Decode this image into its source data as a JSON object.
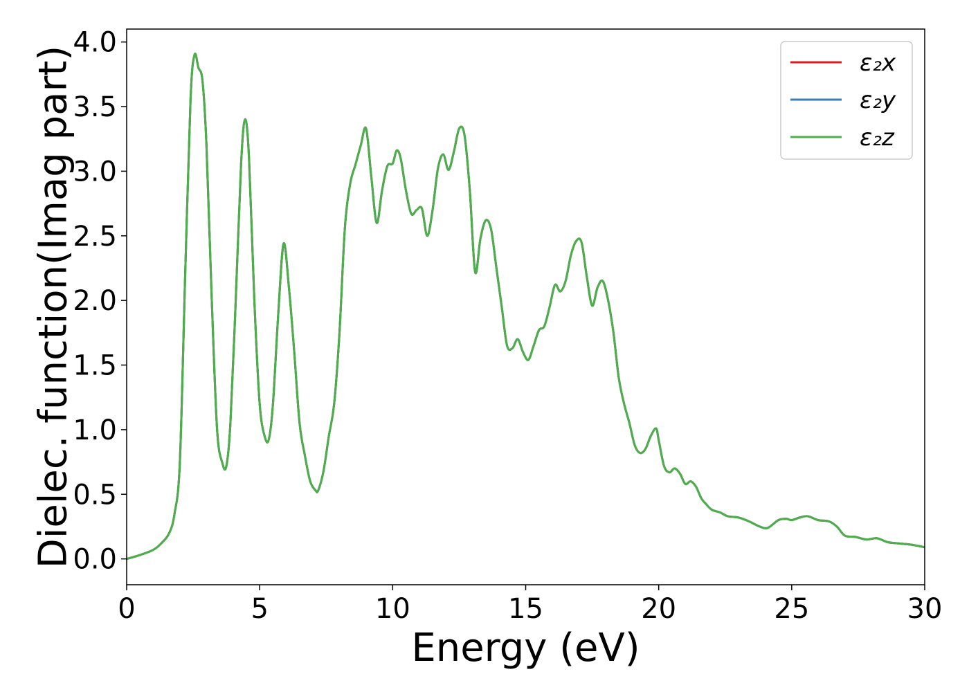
{
  "chart_data": {
    "type": "line",
    "title": "",
    "xlabel": "Energy (eV)",
    "ylabel": "Dielec. function(Imag part)",
    "xlim": [
      0,
      30
    ],
    "ylim": [
      -0.2,
      4.1
    ],
    "xticks": [
      0,
      5,
      10,
      15,
      20,
      25,
      30
    ],
    "xtick_labels": [
      "0",
      "5",
      "10",
      "15",
      "20",
      "25",
      "30"
    ],
    "yticks": [
      0.0,
      0.5,
      1.0,
      1.5,
      2.0,
      2.5,
      3.0,
      3.5,
      4.0
    ],
    "ytick_labels": [
      "0.0",
      "0.5",
      "1.0",
      "1.5",
      "2.0",
      "2.5",
      "3.0",
      "3.5",
      "4.0"
    ],
    "grid": false,
    "legend_position": "top-right",
    "x": [
      0,
      0.5,
      1.0,
      1.3,
      1.6,
      1.8,
      2.0,
      2.2,
      2.4,
      2.55,
      2.7,
      2.85,
      3.0,
      3.2,
      3.4,
      3.6,
      3.75,
      3.9,
      4.1,
      4.3,
      4.45,
      4.6,
      4.8,
      5.0,
      5.2,
      5.35,
      5.5,
      5.7,
      5.9,
      6.1,
      6.3,
      6.5,
      6.7,
      6.9,
      7.1,
      7.2,
      7.4,
      7.6,
      7.8,
      8.0,
      8.2,
      8.4,
      8.6,
      8.8,
      9.0,
      9.2,
      9.4,
      9.6,
      9.8,
      10.0,
      10.15,
      10.3,
      10.5,
      10.7,
      10.9,
      11.1,
      11.3,
      11.5,
      11.7,
      11.9,
      12.1,
      12.3,
      12.5,
      12.7,
      12.9,
      13.1,
      13.3,
      13.5,
      13.7,
      13.9,
      14.1,
      14.3,
      14.5,
      14.7,
      14.9,
      15.1,
      15.3,
      15.5,
      15.7,
      15.9,
      16.1,
      16.3,
      16.5,
      16.7,
      16.9,
      17.1,
      17.3,
      17.5,
      17.7,
      17.9,
      18.1,
      18.3,
      18.5,
      18.7,
      18.9,
      19.1,
      19.3,
      19.5,
      19.7,
      19.9,
      20.0,
      20.2,
      20.4,
      20.6,
      20.8,
      21.0,
      21.2,
      21.4,
      21.6,
      21.8,
      22.0,
      22.3,
      22.6,
      23.0,
      23.4,
      23.8,
      24.1,
      24.5,
      24.8,
      25.0,
      25.3,
      25.6,
      26.0,
      26.4,
      26.7,
      27.0,
      27.4,
      27.8,
      28.2,
      28.6,
      29.0,
      29.5,
      30.0
    ],
    "series": [
      {
        "name": "ε₂x",
        "color": "#e41a1c",
        "values": [
          0.0,
          0.03,
          0.07,
          0.12,
          0.2,
          0.35,
          0.75,
          2.2,
          3.55,
          3.9,
          3.8,
          3.7,
          3.2,
          2.0,
          1.0,
          0.74,
          0.72,
          1.05,
          2.0,
          3.05,
          3.4,
          3.1,
          2.0,
          1.2,
          0.94,
          0.93,
          1.2,
          1.9,
          2.44,
          2.1,
          1.6,
          1.05,
          0.8,
          0.6,
          0.53,
          0.53,
          0.68,
          0.95,
          1.2,
          1.75,
          2.55,
          2.9,
          3.05,
          3.2,
          3.33,
          2.95,
          2.6,
          2.85,
          3.04,
          3.06,
          3.16,
          3.1,
          2.85,
          2.67,
          2.7,
          2.71,
          2.5,
          2.7,
          3.02,
          3.13,
          3.01,
          3.15,
          3.33,
          3.28,
          2.85,
          2.22,
          2.48,
          2.62,
          2.55,
          2.25,
          1.95,
          1.65,
          1.63,
          1.7,
          1.6,
          1.54,
          1.65,
          1.77,
          1.8,
          1.95,
          2.12,
          2.07,
          2.15,
          2.35,
          2.46,
          2.45,
          2.18,
          1.96,
          2.1,
          2.15,
          2.0,
          1.75,
          1.4,
          1.2,
          1.05,
          0.88,
          0.82,
          0.85,
          0.95,
          1.01,
          0.92,
          0.72,
          0.67,
          0.7,
          0.66,
          0.58,
          0.6,
          0.56,
          0.47,
          0.42,
          0.38,
          0.36,
          0.33,
          0.32,
          0.29,
          0.25,
          0.24,
          0.3,
          0.31,
          0.3,
          0.32,
          0.33,
          0.3,
          0.29,
          0.25,
          0.18,
          0.17,
          0.15,
          0.16,
          0.13,
          0.12,
          0.11,
          0.09
        ]
      },
      {
        "name": "ε₂y",
        "color": "#377eb8",
        "values": [
          0.0,
          0.03,
          0.07,
          0.12,
          0.2,
          0.35,
          0.75,
          2.2,
          3.55,
          3.9,
          3.8,
          3.7,
          3.2,
          2.0,
          1.0,
          0.74,
          0.72,
          1.05,
          2.0,
          3.05,
          3.4,
          3.1,
          2.0,
          1.2,
          0.94,
          0.93,
          1.2,
          1.9,
          2.44,
          2.1,
          1.6,
          1.05,
          0.8,
          0.6,
          0.53,
          0.53,
          0.68,
          0.95,
          1.2,
          1.75,
          2.55,
          2.9,
          3.05,
          3.2,
          3.33,
          2.95,
          2.6,
          2.85,
          3.04,
          3.06,
          3.16,
          3.1,
          2.85,
          2.67,
          2.7,
          2.71,
          2.5,
          2.7,
          3.02,
          3.13,
          3.01,
          3.15,
          3.33,
          3.28,
          2.85,
          2.22,
          2.48,
          2.62,
          2.55,
          2.25,
          1.95,
          1.65,
          1.63,
          1.7,
          1.6,
          1.54,
          1.65,
          1.77,
          1.8,
          1.95,
          2.12,
          2.07,
          2.15,
          2.35,
          2.46,
          2.45,
          2.18,
          1.96,
          2.1,
          2.15,
          2.0,
          1.75,
          1.4,
          1.2,
          1.05,
          0.88,
          0.82,
          0.85,
          0.95,
          1.01,
          0.92,
          0.72,
          0.67,
          0.7,
          0.66,
          0.58,
          0.6,
          0.56,
          0.47,
          0.42,
          0.38,
          0.36,
          0.33,
          0.32,
          0.29,
          0.25,
          0.24,
          0.3,
          0.31,
          0.3,
          0.32,
          0.33,
          0.3,
          0.29,
          0.25,
          0.18,
          0.17,
          0.15,
          0.16,
          0.13,
          0.12,
          0.11,
          0.09
        ]
      },
      {
        "name": "ε₂z",
        "color": "#4daf4a",
        "values": [
          0.0,
          0.03,
          0.07,
          0.12,
          0.2,
          0.35,
          0.75,
          2.2,
          3.55,
          3.9,
          3.8,
          3.7,
          3.2,
          2.0,
          1.0,
          0.74,
          0.72,
          1.05,
          2.0,
          3.05,
          3.4,
          3.1,
          2.0,
          1.2,
          0.94,
          0.93,
          1.2,
          1.9,
          2.44,
          2.1,
          1.6,
          1.05,
          0.8,
          0.6,
          0.53,
          0.53,
          0.68,
          0.95,
          1.2,
          1.75,
          2.55,
          2.9,
          3.05,
          3.2,
          3.33,
          2.95,
          2.6,
          2.85,
          3.04,
          3.06,
          3.16,
          3.1,
          2.85,
          2.67,
          2.7,
          2.71,
          2.5,
          2.7,
          3.02,
          3.13,
          3.01,
          3.15,
          3.33,
          3.28,
          2.85,
          2.22,
          2.48,
          2.62,
          2.55,
          2.25,
          1.95,
          1.65,
          1.63,
          1.7,
          1.6,
          1.54,
          1.65,
          1.77,
          1.8,
          1.95,
          2.12,
          2.07,
          2.15,
          2.35,
          2.46,
          2.45,
          2.18,
          1.96,
          2.1,
          2.15,
          2.0,
          1.75,
          1.4,
          1.2,
          1.05,
          0.88,
          0.82,
          0.85,
          0.95,
          1.01,
          0.92,
          0.72,
          0.67,
          0.7,
          0.66,
          0.58,
          0.6,
          0.56,
          0.47,
          0.42,
          0.38,
          0.36,
          0.33,
          0.32,
          0.29,
          0.25,
          0.24,
          0.3,
          0.31,
          0.3,
          0.32,
          0.33,
          0.3,
          0.29,
          0.25,
          0.18,
          0.17,
          0.15,
          0.16,
          0.13,
          0.12,
          0.11,
          0.09
        ]
      }
    ]
  }
}
